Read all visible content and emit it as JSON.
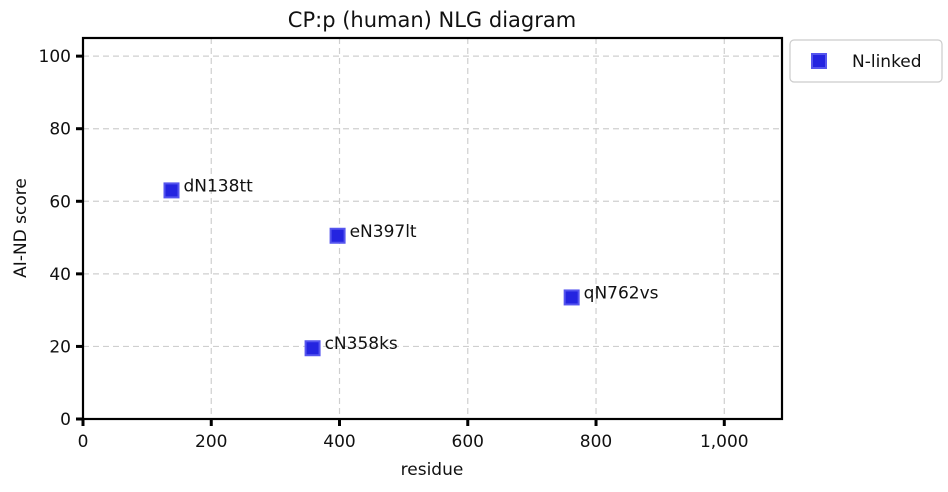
{
  "chart_data": {
    "type": "scatter",
    "title": "CP:p (human) NLG diagram",
    "xlabel": "residue",
    "ylabel": "AI-ND score",
    "xlim": [
      0,
      1090
    ],
    "ylim": [
      0,
      105
    ],
    "xticks": [
      0,
      200,
      400,
      600,
      800,
      1000
    ],
    "xtick_labels": [
      "0",
      "200",
      "400",
      "600",
      "800",
      "1,000"
    ],
    "yticks": [
      0,
      20,
      40,
      60,
      80,
      100
    ],
    "ytick_labels": [
      "0",
      "20",
      "40",
      "60",
      "80",
      "100"
    ],
    "grid": true,
    "legend_position": "outside-top-right",
    "series": [
      {
        "name": "N-linked",
        "color": "#2424e0",
        "marker": "square",
        "points": [
          {
            "x": 138,
            "y": 63,
            "label": "dN138tt"
          },
          {
            "x": 397,
            "y": 50.5,
            "label": "eN397lt"
          },
          {
            "x": 762,
            "y": 33.5,
            "label": "qN762vs"
          },
          {
            "x": 358,
            "y": 19.5,
            "label": "cN358ks"
          }
        ]
      }
    ]
  }
}
